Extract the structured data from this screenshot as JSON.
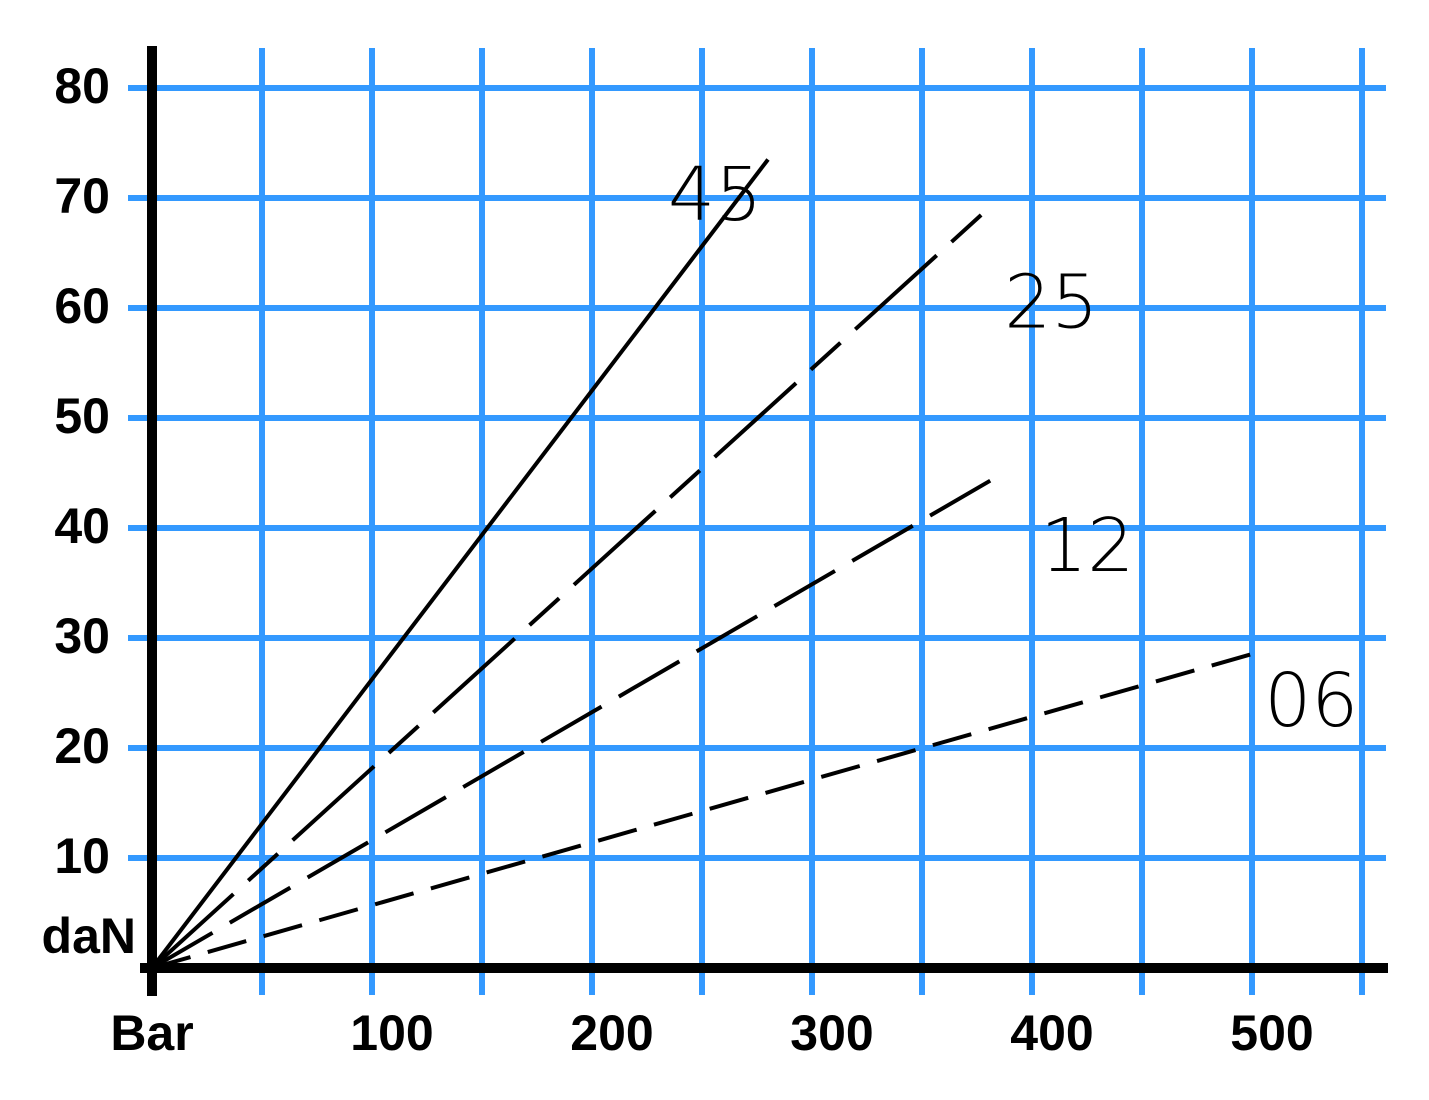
{
  "chart_data": {
    "type": "line",
    "xlim": [
      0,
      560
    ],
    "ylim": [
      0,
      84
    ],
    "xticks": [
      {
        "value": 0,
        "label": "Bar"
      },
      {
        "value": 50,
        "label": null
      },
      100,
      {
        "value": 150,
        "label": null
      },
      200,
      {
        "value": 250,
        "label": null
      },
      300,
      {
        "value": 350,
        "label": null
      },
      400,
      {
        "value": 450,
        "label": null
      },
      500,
      {
        "value": 550,
        "label": null
      }
    ],
    "yticks": [
      {
        "value": 0,
        "label": "daN"
      },
      10,
      20,
      30,
      40,
      50,
      60,
      70,
      80
    ],
    "grid": true,
    "grid_color": "#3399ff",
    "series": [
      {
        "name": "45",
        "color": "#000000",
        "style": "solid",
        "x": [
          0,
          280
        ],
        "values": [
          0,
          73.5
        ]
      },
      {
        "name": "25",
        "color": "#000000",
        "style": "dashdot",
        "x": [
          0,
          381
        ],
        "values": [
          0,
          69.2
        ]
      },
      {
        "name": "12",
        "color": "#000000",
        "style": "longdash",
        "x": [
          0,
          381
        ],
        "values": [
          0,
          44.3
        ]
      },
      {
        "name": "06",
        "color": "#000000",
        "style": "dashed",
        "x": [
          0,
          501
        ],
        "values": [
          0,
          28.6
        ]
      }
    ]
  }
}
